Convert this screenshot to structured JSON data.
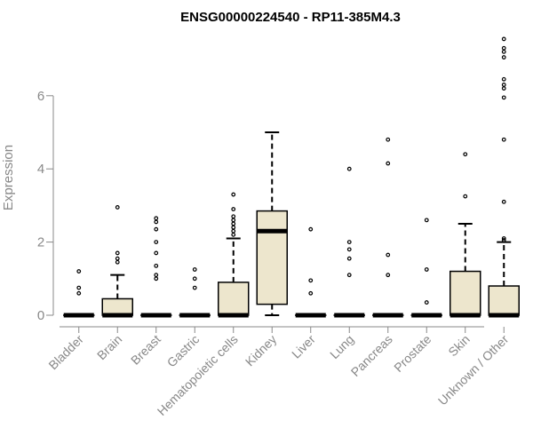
{
  "chart_data": {
    "type": "boxplot",
    "title": "ENSG00000224540 - RP11-385M4.3",
    "xlabel": "",
    "ylabel": "Expression",
    "ylim": [
      0,
      7.6
    ],
    "yticks": [
      0,
      2,
      4,
      6
    ],
    "grid": false,
    "legend": "none",
    "box_fill": "#ede6cd",
    "categories": [
      "Bladder",
      "Brain",
      "Breast",
      "Gastric",
      "Hematopoietic cells",
      "Kidney",
      "Liver",
      "Lung",
      "Pancreas",
      "Prostate",
      "Skin",
      "Unknown / Other"
    ],
    "boxes": [
      {
        "category": "Bladder",
        "q1": 0,
        "median": 0,
        "q3": 0,
        "whisker_low": 0,
        "whisker_high": 0,
        "outliers": [
          0.6,
          0.75,
          1.2
        ]
      },
      {
        "category": "Brain",
        "q1": 0,
        "median": 0,
        "q3": 0.45,
        "whisker_low": 0,
        "whisker_high": 1.1,
        "outliers": [
          1.45,
          1.55,
          1.7,
          2.95
        ]
      },
      {
        "category": "Breast",
        "q1": 0,
        "median": 0,
        "q3": 0,
        "whisker_low": 0,
        "whisker_high": 0,
        "outliers": [
          1.0,
          1.1,
          1.35,
          1.7,
          2.0,
          2.35,
          2.55,
          2.65
        ]
      },
      {
        "category": "Gastric",
        "q1": 0,
        "median": 0,
        "q3": 0,
        "whisker_low": 0,
        "whisker_high": 0,
        "outliers": [
          0.75,
          1.0,
          1.25
        ]
      },
      {
        "category": "Hematopoietic cells",
        "q1": 0,
        "median": 0,
        "q3": 0.9,
        "whisker_low": 0,
        "whisker_high": 2.1,
        "outliers": [
          2.2,
          2.3,
          2.4,
          2.5,
          2.6,
          2.7,
          2.9,
          3.3
        ]
      },
      {
        "category": "Kidney",
        "q1": 0.3,
        "median": 2.3,
        "q3": 2.85,
        "whisker_low": 0,
        "whisker_high": 5.0,
        "outliers": []
      },
      {
        "category": "Liver",
        "q1": 0,
        "median": 0,
        "q3": 0,
        "whisker_low": 0,
        "whisker_high": 0,
        "outliers": [
          0.6,
          0.95,
          2.35
        ]
      },
      {
        "category": "Lung",
        "q1": 0,
        "median": 0,
        "q3": 0,
        "whisker_low": 0,
        "whisker_high": 0,
        "outliers": [
          1.1,
          1.55,
          1.8,
          2.0,
          4.0
        ]
      },
      {
        "category": "Pancreas",
        "q1": 0,
        "median": 0,
        "q3": 0,
        "whisker_low": 0,
        "whisker_high": 0,
        "outliers": [
          1.1,
          1.65,
          4.15,
          4.8
        ]
      },
      {
        "category": "Prostate",
        "q1": 0,
        "median": 0,
        "q3": 0,
        "whisker_low": 0,
        "whisker_high": 0,
        "outliers": [
          0.35,
          1.25,
          2.6
        ]
      },
      {
        "category": "Skin",
        "q1": 0,
        "median": 0,
        "q3": 1.2,
        "whisker_low": 0,
        "whisker_high": 2.5,
        "outliers": [
          3.25,
          4.4
        ]
      },
      {
        "category": "Unknown / Other",
        "q1": 0,
        "median": 0,
        "q3": 0.8,
        "whisker_low": 0,
        "whisker_high": 2.0,
        "outliers": [
          2.05,
          2.1,
          3.1,
          4.8,
          5.95,
          6.2,
          6.3,
          6.45,
          7.05,
          7.2,
          7.3,
          7.55
        ]
      }
    ]
  }
}
